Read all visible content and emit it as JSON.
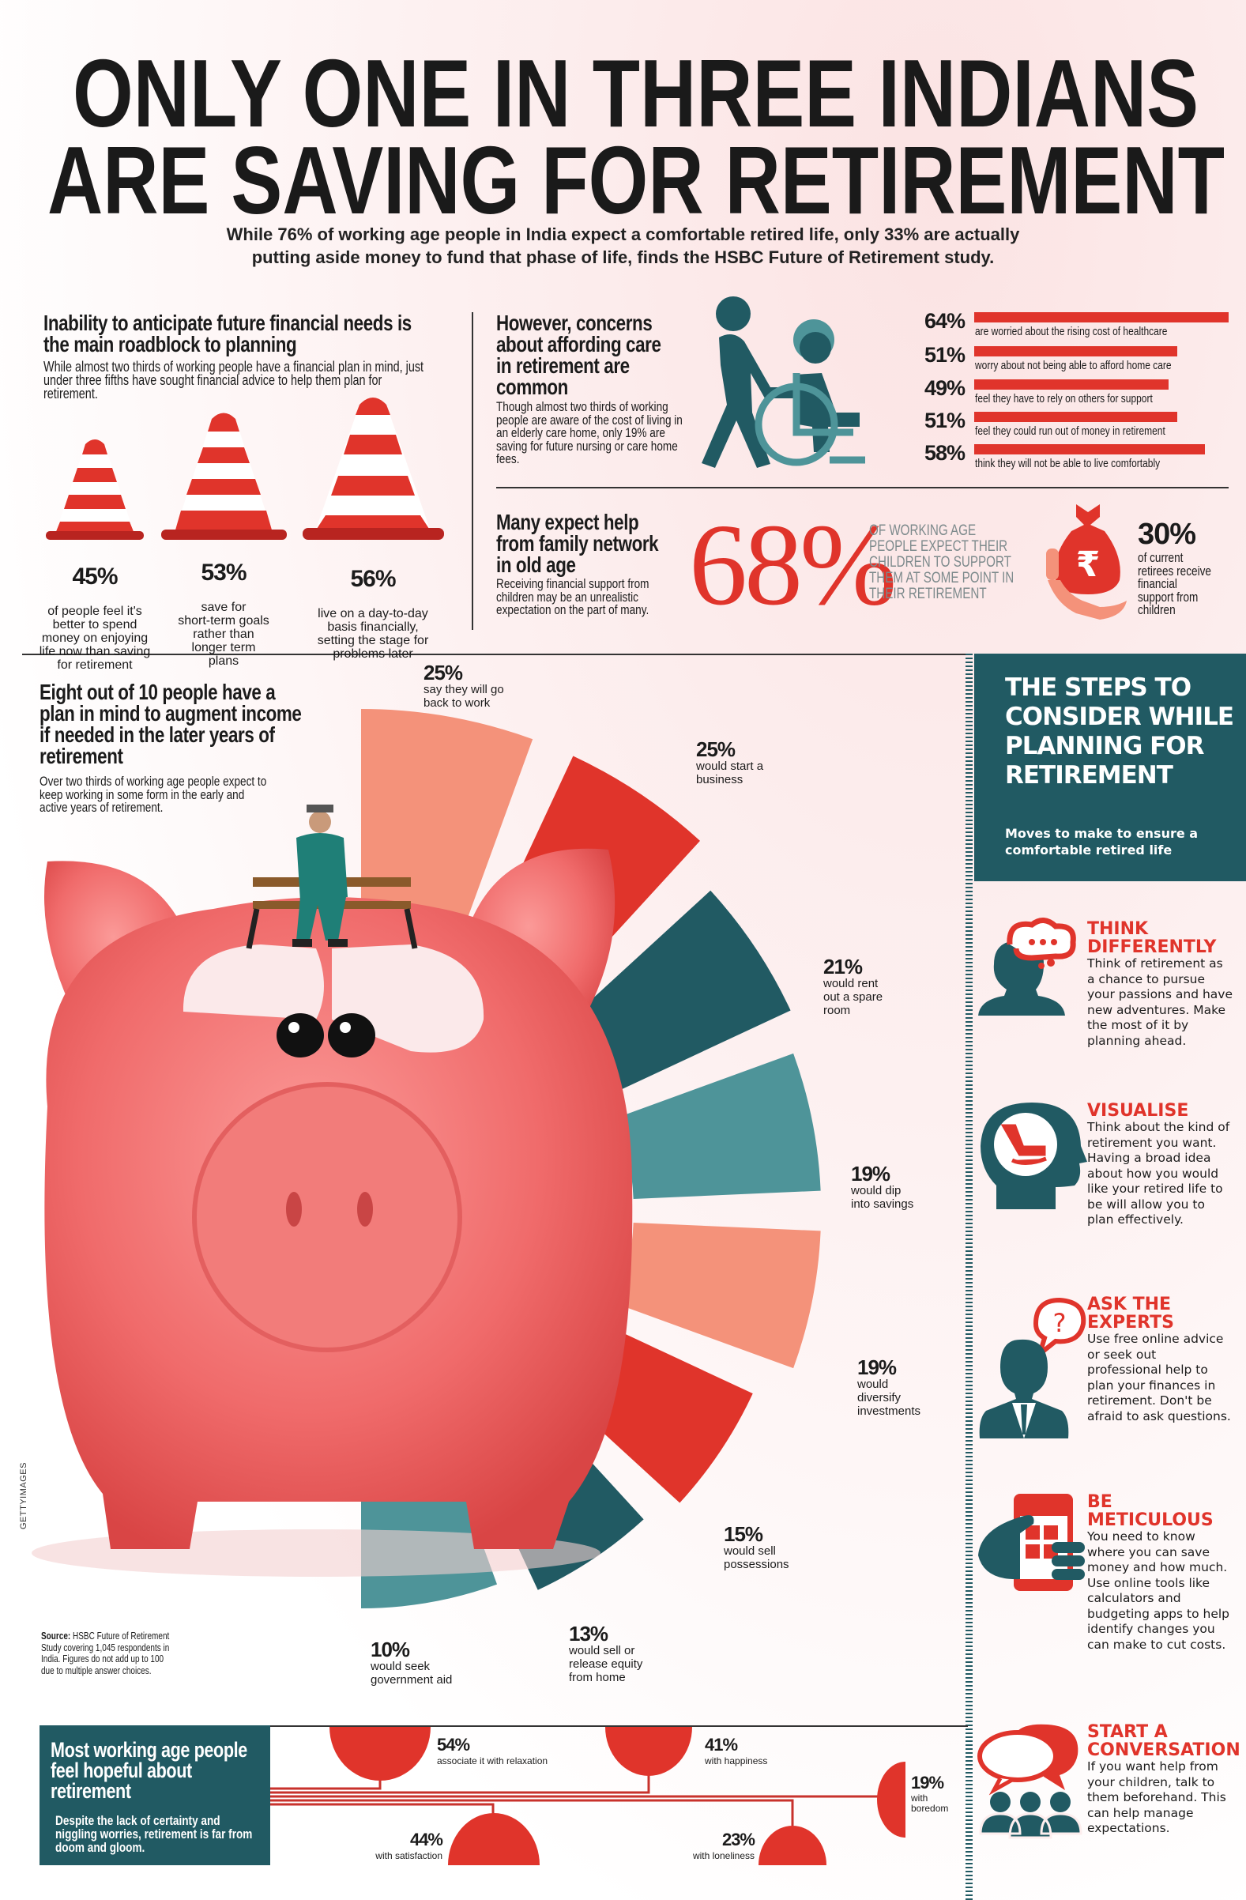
{
  "title": {
    "line1": "ONLY ONE IN THREE INDIANS",
    "line2": "ARE SAVING FOR RETIREMENT"
  },
  "subtitle": {
    "line1": "While 76% of working age people in India expect a comfortable retired life, only 33% are actually",
    "line2": "putting aside money to fund that phase of life, finds the HSBC Future of Retirement study."
  },
  "colors": {
    "red": "#e0342b",
    "salmon": "#f4927a",
    "dark_teal": "#215a63",
    "teal": "#4e9499",
    "pig": "#f07272"
  },
  "planning": {
    "heading": "Inability to anticipate future financial needs is the main roadblock to planning",
    "body": "While almost two thirds of working people have a financial plan in mind, just under three fifths have sought financial advice to help them plan for retirement.",
    "cones": [
      {
        "pct": "45%",
        "text": "of people feel it's\nbetter to spend\nmoney on enjoying\nlife now than saving\nfor retirement"
      },
      {
        "pct": "53%",
        "text": "save for\nshort-term goals\nrather than\nlonger term\nplans"
      },
      {
        "pct": "56%",
        "text": "live on a day-to-day\nbasis financially,\nsetting the stage for\nproblems later"
      }
    ]
  },
  "care": {
    "heading": "However, concerns about affording care in retirement are common",
    "body": "Though almost two thirds of working people are aware of the cost of living in an elderly care home, only 19% are saving for future nursing or care home fees.",
    "icon": "caregiver-wheelchair-icon",
    "stats": [
      {
        "pct": "64%",
        "value": 64,
        "text": "are worried about the rising cost of healthcare"
      },
      {
        "pct": "51%",
        "value": 51,
        "text": "worry about not being able to afford home care"
      },
      {
        "pct": "49%",
        "value": 49,
        "text": "feel they have to rely on others for support"
      },
      {
        "pct": "51%",
        "value": 51,
        "text": "feel they could run out of money in retirement"
      },
      {
        "pct": "58%",
        "value": 58,
        "text": "think they will not be able to live comfortably"
      }
    ]
  },
  "family": {
    "heading": "Many expect help from family network in old age",
    "body": "Receiving financial support from children may be an unrealistic expectation on the part of many.",
    "big_pct": "68%",
    "big_text": "OF WORKING AGE PEOPLE EXPECT THEIR CHILDREN TO SUPPORT THEM AT SOME POINT IN THEIR RETIREMENT",
    "side_pct": "30%",
    "side_text": "of current retirees receive financial support from children",
    "icon": "rupee-money-bag-icon"
  },
  "augment": {
    "heading": "Eight out of 10 people have a plan in mind to augment income if needed in the later years of retirement",
    "body": "Over two thirds of working age people expect to keep working in some form in the early and active years of retirement.",
    "options": [
      {
        "pct": "25%",
        "value": 25,
        "text": "say they will go\nback to work",
        "color": "#f4927a"
      },
      {
        "pct": "25%",
        "value": 25,
        "text": "would start a\nbusiness",
        "color": "#e0342b"
      },
      {
        "pct": "21%",
        "value": 21,
        "text": "would rent\nout a spare\nroom",
        "color": "#215a63"
      },
      {
        "pct": "19%",
        "value": 19,
        "text": "would dip\ninto savings",
        "color": "#4e9499"
      },
      {
        "pct": "19%",
        "value": 19,
        "text": "would\ndiversify\ninvestments",
        "color": "#f4927a"
      },
      {
        "pct": "15%",
        "value": 15,
        "text": "would sell\npossessions",
        "color": "#e0342b"
      },
      {
        "pct": "13%",
        "value": 13,
        "text": "would sell or\nrelease equity\nfrom home",
        "color": "#215a63"
      },
      {
        "pct": "10%",
        "value": 10,
        "text": "would seek\ngovernment aid",
        "color": "#4e9499"
      }
    ],
    "photo_credit": "GETTYIMAGES",
    "source_label": "Source:",
    "source_text": " HSBC Future of Retirement Study covering 1,045 respondents in India. Figures do not add up to 100 due to multiple answer choices."
  },
  "steps": {
    "title": "THE STEPS TO CONSIDER WHILE PLANNING FOR RETIREMENT",
    "subtitle": "Moves to make to ensure a comfortable retired life",
    "items": [
      {
        "heading": "THINK\nDIFFERENTLY",
        "body": "Think of retirement as a chance to pursue your passions and have new adventures. Make the most of it by planning ahead.",
        "icon": "thinking-head-icon"
      },
      {
        "heading": "VISUALISE",
        "body": "Think about the kind of retirement you want. Having a broad idea about how you would like your retired life to be will allow you to plan effectively.",
        "icon": "rocking-chair-head-icon"
      },
      {
        "heading": "ASK THE\nEXPERTS",
        "body": "Use free online advice or seek out professional help to plan your finances in retirement. Don't be afraid to ask questions.",
        "icon": "expert-question-icon"
      },
      {
        "heading": "BE\nMETICULOUS",
        "body": "You need to know where you can save money and how much. Use online tools like calculators and budgeting apps to help identify changes you can make to cut costs.",
        "icon": "calculator-phone-icon"
      },
      {
        "heading": "START A\nCONVERSATION",
        "body": "If you want help from your children, talk to them beforehand. This can help manage expectations.",
        "icon": "conversation-group-icon"
      }
    ]
  },
  "hopeful": {
    "heading": "Most working age people feel hopeful about retirement",
    "body": "Despite the lack of certainty and niggling worries, retirement is far from doom and gloom.",
    "items": [
      {
        "pct": "54%",
        "value": 54,
        "text": "associate it with relaxation"
      },
      {
        "pct": "41%",
        "value": 41,
        "text": "with happiness"
      },
      {
        "pct": "19%",
        "value": 19,
        "text": "with\nboredom"
      },
      {
        "pct": "44%",
        "value": 44,
        "text": "with satisfaction"
      },
      {
        "pct": "23%",
        "value": 23,
        "text": "with loneliness"
      }
    ]
  }
}
